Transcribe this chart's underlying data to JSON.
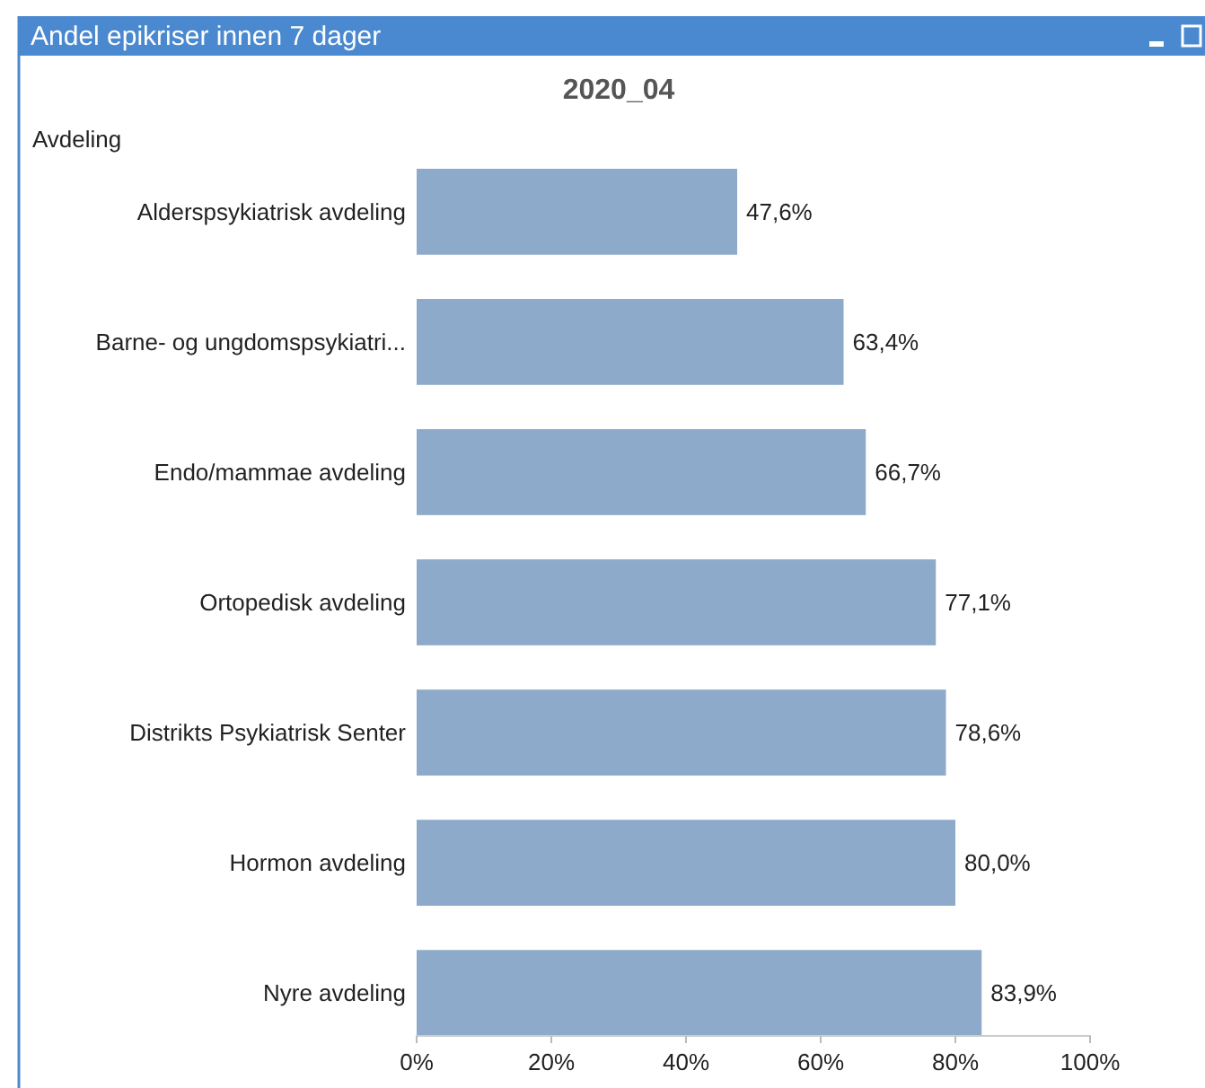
{
  "chart_data": {
    "type": "bar",
    "orientation": "horizontal",
    "title": "Andel epikriser innen 7 dager",
    "subtitle": "2020_04",
    "ylabel": "Avdeling",
    "categories": [
      "Alderspsykiatrisk avdeling",
      "Barne- og ungdomspsykiatri...",
      "Endo/mammae avdeling",
      "Ortopedisk avdeling",
      "Distrikts Psykiatrisk Senter",
      "Hormon avdeling",
      "Nyre avdeling"
    ],
    "values": [
      47.6,
      63.4,
      66.7,
      77.1,
      78.6,
      80.0,
      83.9
    ],
    "value_labels": [
      "47,6%",
      "63,4%",
      "66,7%",
      "77,1%",
      "78,6%",
      "80,0%",
      "83,9%"
    ],
    "color": "#8eaacb",
    "xlim": [
      0,
      100
    ],
    "xticks": [
      {
        "value": 0,
        "label": "0%"
      },
      {
        "value": 20,
        "label": "20%"
      },
      {
        "value": 40,
        "label": "40%"
      },
      {
        "value": 60,
        "label": "60%"
      },
      {
        "value": 80,
        "label": "80%"
      },
      {
        "value": 100,
        "label": "100%"
      }
    ],
    "grid": false
  }
}
